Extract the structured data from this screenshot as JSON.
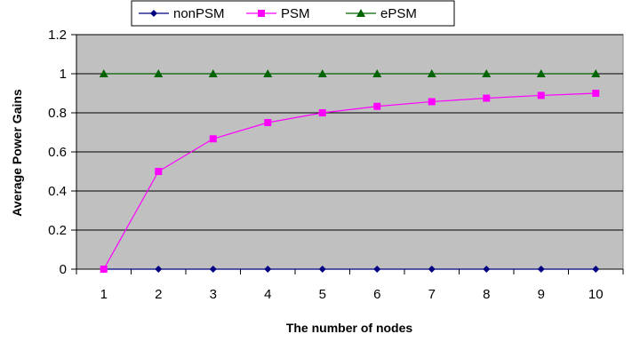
{
  "chart_data": {
    "type": "line",
    "title": "",
    "xlabel": "The number of nodes",
    "ylabel": "Average Power Gains",
    "x": [
      1,
      2,
      3,
      4,
      5,
      6,
      7,
      8,
      9,
      10
    ],
    "ylim": [
      0,
      1.2
    ],
    "yticks": [
      "0",
      "0.2",
      "0.4",
      "0.6",
      "0.8",
      "1",
      "1.2"
    ],
    "grid": true,
    "legend_position": "top",
    "plot_background": "#c0c0c0",
    "series": [
      {
        "name": "nonPSM",
        "color": "#000080",
        "marker": "diamond",
        "values": [
          0,
          0,
          0,
          0,
          0,
          0,
          0,
          0,
          0,
          0
        ]
      },
      {
        "name": "PSM",
        "color": "#ff00ff",
        "marker": "square",
        "values": [
          0,
          0.5,
          0.667,
          0.75,
          0.8,
          0.833,
          0.857,
          0.875,
          0.889,
          0.9
        ]
      },
      {
        "name": "ePSM",
        "color": "#006400",
        "marker": "triangle",
        "values": [
          1,
          1,
          1,
          1,
          1,
          1,
          1,
          1,
          1,
          1
        ]
      }
    ]
  }
}
